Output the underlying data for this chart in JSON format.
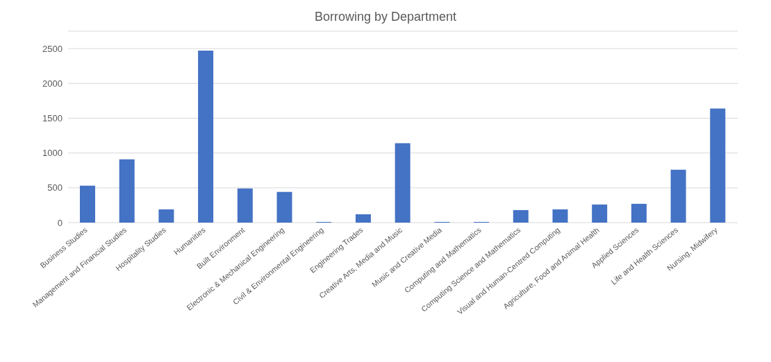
{
  "chart_data": {
    "type": "bar",
    "title": "Borrowing by Department",
    "categories": [
      "Business Studies",
      "Management and Financial Studies",
      "Hospitality Studies",
      "Humanities",
      "Built Environment",
      "Electronic & Mechanical Engineering",
      "Civil & Environmental Engineering",
      "Engineering Trades",
      "Creative Arts, Media and Music",
      "Music and Creative Media",
      "Computing and Mathematics",
      "Computing Science and Mathematics",
      "Visual and Human-Centred Computing",
      "Agriculture, Food and Animal Health",
      "Applied Sciences",
      "Life and Health Sciences",
      "Nursing, Midwifery"
    ],
    "values": [
      530,
      910,
      190,
      2470,
      490,
      440,
      10,
      120,
      1140,
      10,
      10,
      180,
      190,
      260,
      270,
      760,
      1640
    ],
    "color": "#4472c4",
    "ylim": [
      0,
      2750
    ],
    "yticks": [
      0,
      500,
      1000,
      1500,
      2000,
      2500
    ],
    "grid": "y"
  }
}
